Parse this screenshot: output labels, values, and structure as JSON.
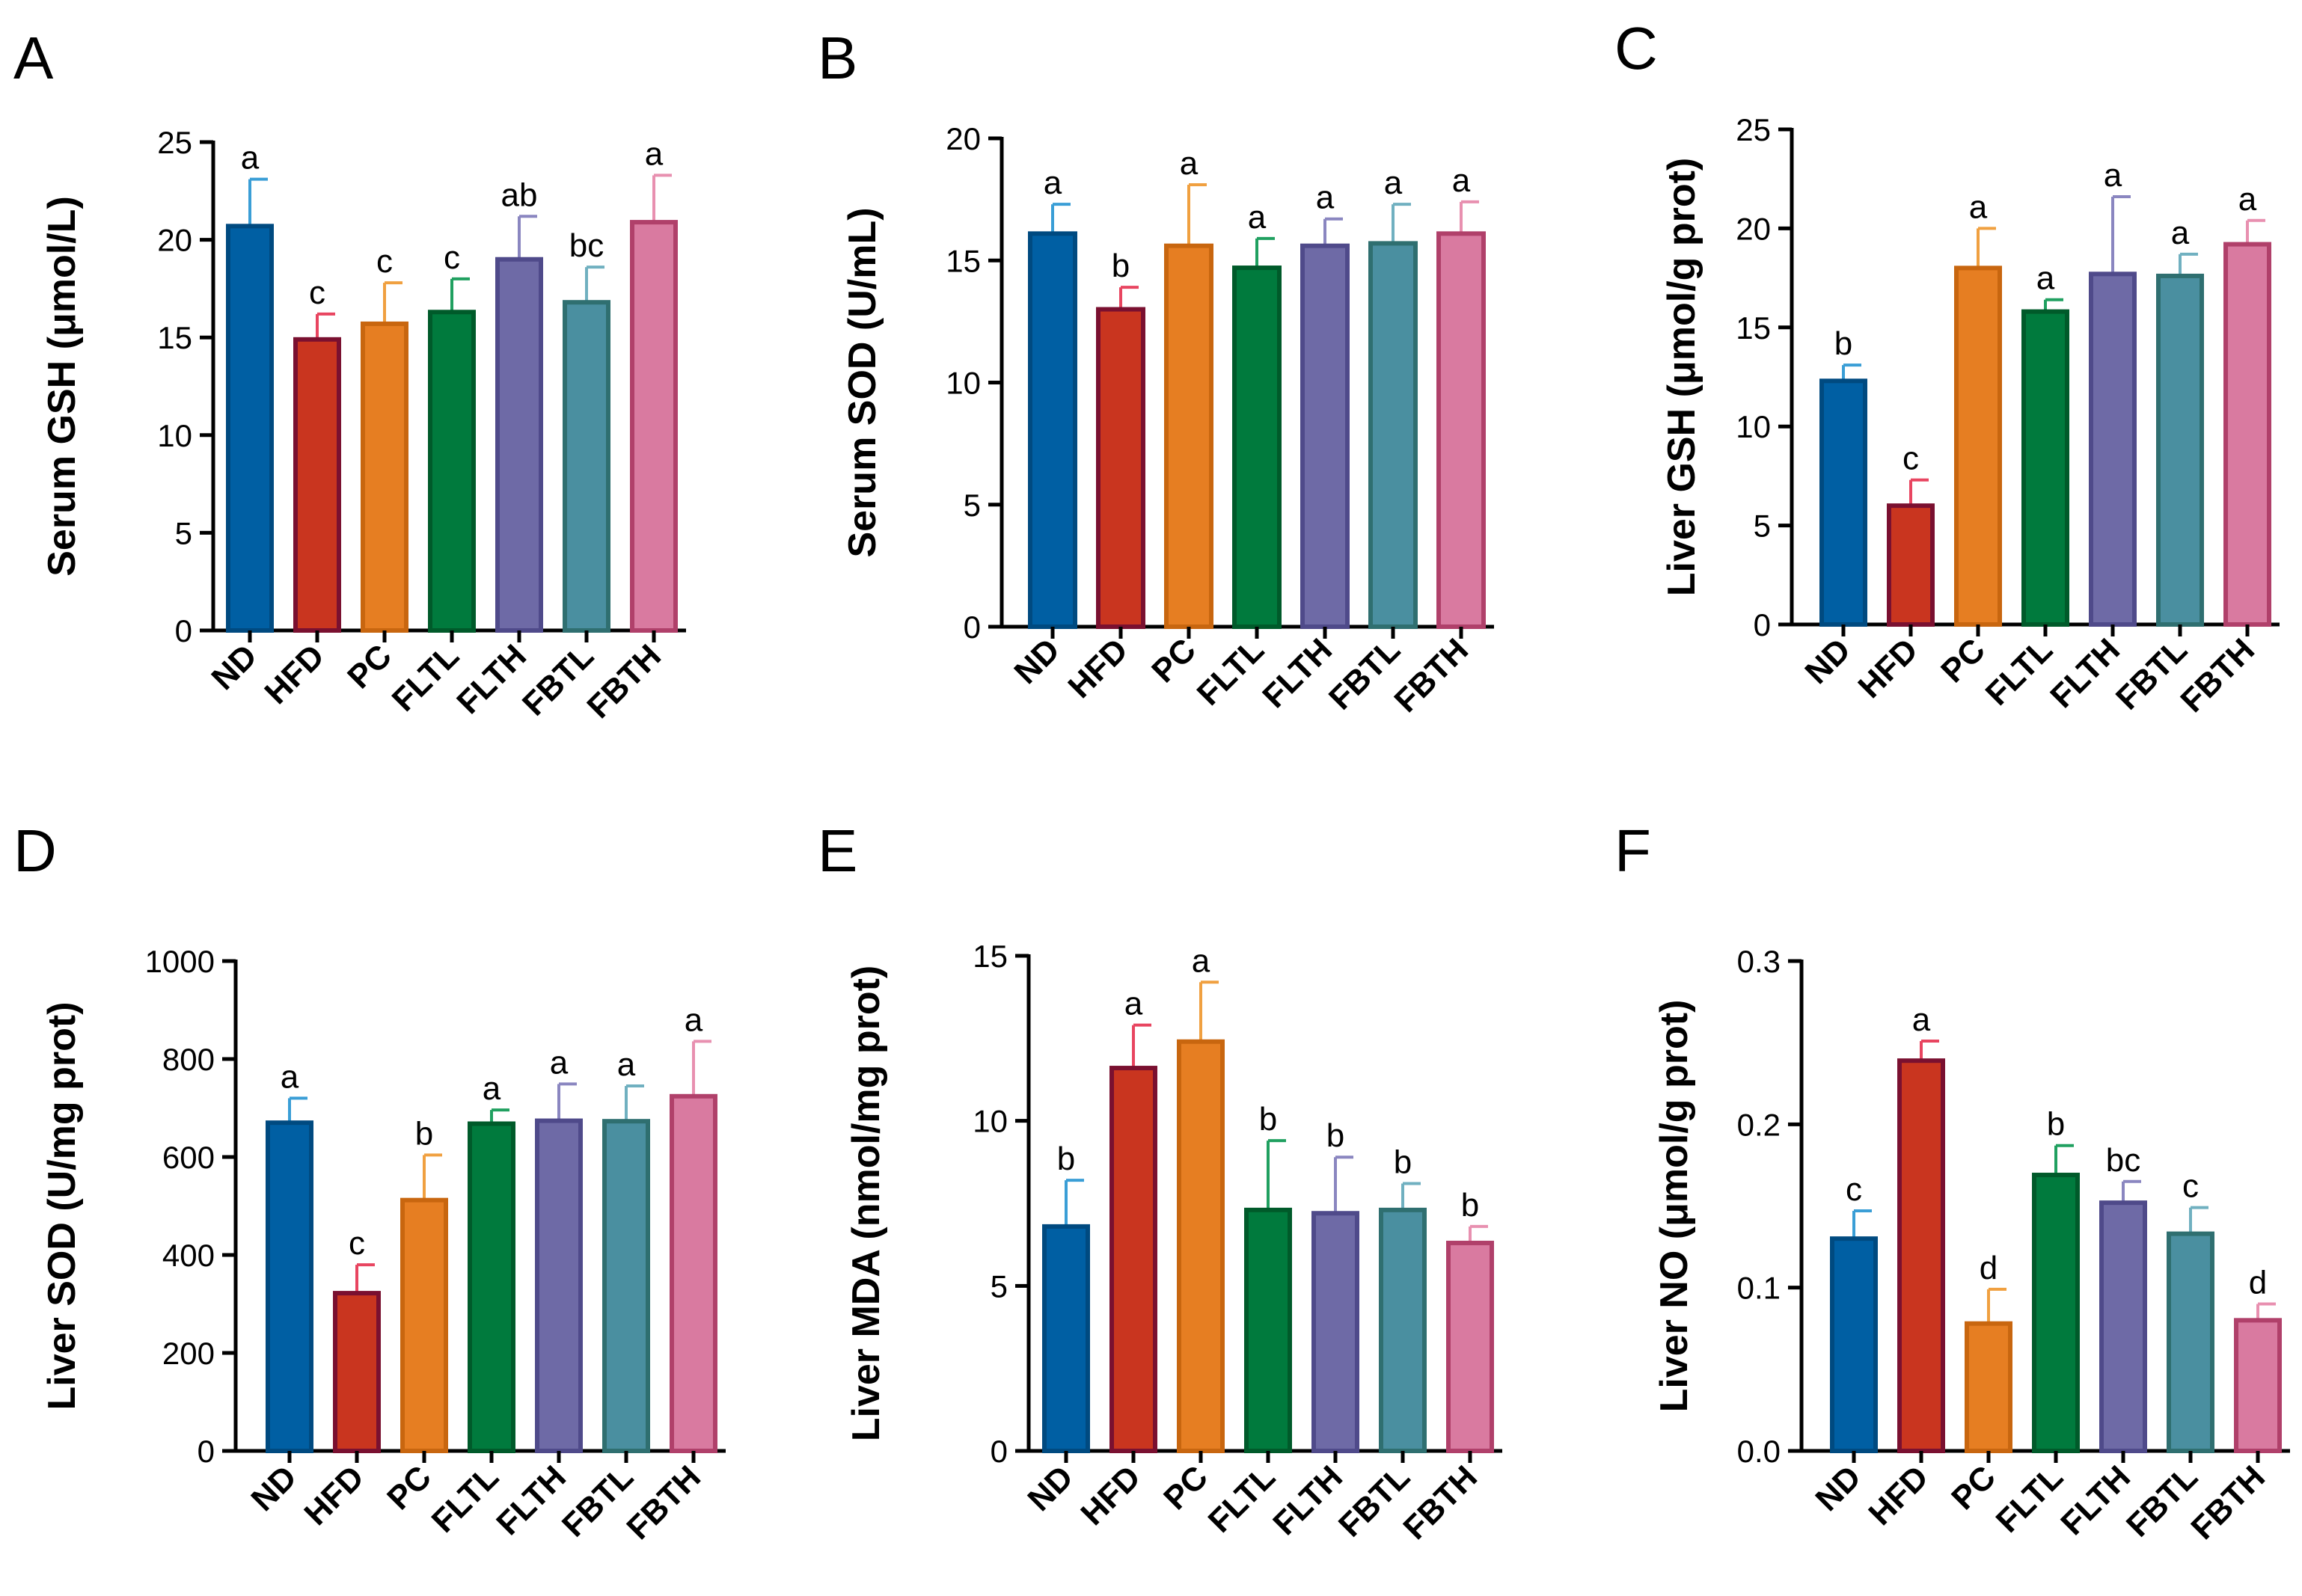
{
  "categories": [
    "ND",
    "HFD",
    "PC",
    "FLTL",
    "FLTH",
    "FBTL",
    "FBTH"
  ],
  "colors": {
    "fill": [
      "#005fa3",
      "#c9351f",
      "#e67e22",
      "#007a3d",
      "#6e6aa6",
      "#4a8fa0",
      "#d97aa0"
    ],
    "edge": [
      "#004a80",
      "#7a1030",
      "#c8660f",
      "#005a2a",
      "#4f4a8a",
      "#2f6f70",
      "#b0406a"
    ],
    "err": [
      "#3a9ed6",
      "#e84560",
      "#f0a040",
      "#20a060",
      "#8a86c0",
      "#70b0c0",
      "#e890b0"
    ]
  },
  "chart_data": [
    {
      "id": "A",
      "type": "bar",
      "letter": "A",
      "ylabel": "Serum GSH (μmol/L)",
      "ylim": [
        0,
        25
      ],
      "yticks": [
        0,
        5,
        10,
        15,
        20,
        25
      ],
      "ytick_labels": [
        "0",
        "5",
        "10",
        "15",
        "20",
        "25"
      ],
      "categories": [
        "ND",
        "HFD",
        "PC",
        "FLTL",
        "FLTH",
        "FBTL",
        "FBTH"
      ],
      "values": [
        20.7,
        14.9,
        15.7,
        16.3,
        19.0,
        16.8,
        20.9
      ],
      "errors": [
        2.4,
        1.3,
        2.1,
        1.7,
        2.2,
        1.8,
        2.4
      ],
      "sig": [
        "a",
        "c",
        "c",
        "c",
        "ab",
        "bc",
        "a"
      ]
    },
    {
      "id": "B",
      "type": "bar",
      "letter": "B",
      "ylabel": "Serum SOD (U/mL)",
      "ylim": [
        0,
        20
      ],
      "yticks": [
        0,
        5,
        10,
        15,
        20
      ],
      "ytick_labels": [
        "0",
        "5",
        "10",
        "15",
        "20"
      ],
      "categories": [
        "ND",
        "HFD",
        "PC",
        "FLTL",
        "FLTH",
        "FBTL",
        "FBTH"
      ],
      "values": [
        16.1,
        13.0,
        15.6,
        14.7,
        15.6,
        15.7,
        16.1
      ],
      "errors": [
        1.2,
        0.9,
        2.5,
        1.2,
        1.1,
        1.6,
        1.3
      ],
      "sig": [
        "a",
        "b",
        "a",
        "a",
        "a",
        "a",
        "a"
      ]
    },
    {
      "id": "C",
      "type": "bar",
      "letter": "C",
      "ylabel": "Liver GSH (μmol/g prot)",
      "ylim": [
        0,
        25
      ],
      "yticks": [
        0,
        5,
        10,
        15,
        20,
        25
      ],
      "ytick_labels": [
        "0",
        "5",
        "10",
        "15",
        "20",
        "25"
      ],
      "categories": [
        "ND",
        "HFD",
        "PC",
        "FLTL",
        "FLTH",
        "FBTL",
        "FBTH"
      ],
      "values": [
        12.3,
        6.0,
        18.0,
        15.8,
        17.7,
        17.6,
        19.2
      ],
      "errors": [
        0.8,
        1.3,
        2.0,
        0.6,
        3.9,
        1.1,
        1.2
      ],
      "sig": [
        "b",
        "c",
        "a",
        "a",
        "a",
        "a",
        "a"
      ]
    },
    {
      "id": "D",
      "type": "bar",
      "letter": "D",
      "ylabel": "Liver SOD (U/mg prot)",
      "ylim": [
        0,
        1000
      ],
      "yticks": [
        0,
        200,
        400,
        600,
        800,
        1000
      ],
      "ytick_labels": [
        "0",
        "200",
        "400",
        "600",
        "800",
        "1000"
      ],
      "categories": [
        "ND",
        "HFD",
        "PC",
        "FLTL",
        "FLTH",
        "FBTL",
        "FBTH"
      ],
      "values": [
        670,
        322,
        512,
        668,
        674,
        673,
        724
      ],
      "errors": [
        50,
        58,
        92,
        28,
        75,
        72,
        112
      ],
      "sig": [
        "a",
        "c",
        "b",
        "a",
        "a",
        "a",
        "a"
      ]
    },
    {
      "id": "E",
      "type": "bar",
      "letter": "E",
      "ylabel": "Liver MDA (nmol/mg prot)",
      "ylim": [
        0,
        15
      ],
      "yticks": [
        0,
        5,
        10,
        15
      ],
      "ytick_labels": [
        "0",
        "5",
        "10",
        "15"
      ],
      "categories": [
        "ND",
        "HFD",
        "PC",
        "FLTL",
        "FLTH",
        "FBTL",
        "FBTH"
      ],
      "values": [
        6.8,
        11.6,
        12.4,
        7.3,
        7.2,
        7.3,
        6.3
      ],
      "errors": [
        1.4,
        1.3,
        1.8,
        2.1,
        1.7,
        0.8,
        0.5
      ],
      "sig": [
        "b",
        "a",
        "a",
        "b",
        "b",
        "b",
        "b"
      ]
    },
    {
      "id": "F",
      "type": "bar",
      "letter": "F",
      "ylabel": "Liver NO (μmol/g prot)",
      "ylim": [
        0,
        0.3
      ],
      "yticks": [
        0,
        0.1,
        0.2,
        0.3
      ],
      "ytick_labels": [
        "0.0",
        "0.1",
        "0.2",
        "0.3"
      ],
      "categories": [
        "ND",
        "HFD",
        "PC",
        "FLTL",
        "FLTH",
        "FBTL",
        "FBTH"
      ],
      "values": [
        0.13,
        0.239,
        0.078,
        0.169,
        0.152,
        0.133,
        0.08
      ],
      "errors": [
        0.017,
        0.012,
        0.021,
        0.018,
        0.013,
        0.016,
        0.01
      ],
      "sig": [
        "c",
        "a",
        "d",
        "b",
        "bc",
        "c",
        "d"
      ]
    }
  ]
}
